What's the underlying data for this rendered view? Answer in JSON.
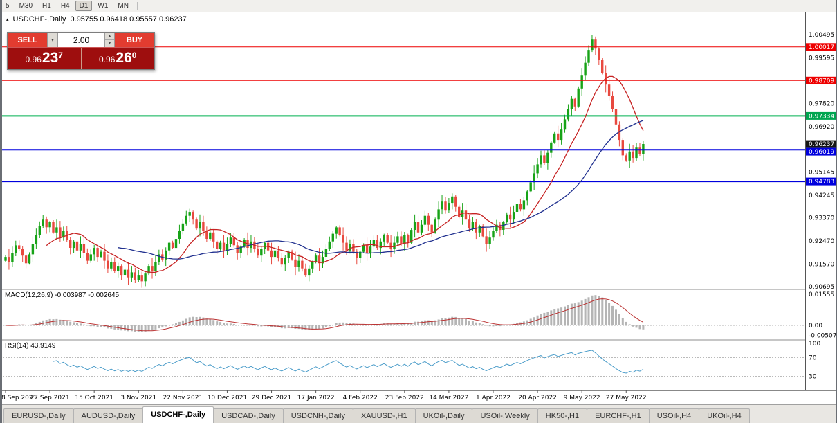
{
  "toolbar": {
    "timeframes": [
      "5",
      "M30",
      "H1",
      "H4",
      "D1",
      "W1",
      "MN"
    ],
    "active_timeframe": "D1"
  },
  "chart": {
    "marker": "▴",
    "title": "USDCHF-,Daily",
    "ohlc": "0.95755 0.96418 0.95557 0.96237"
  },
  "trade_panel": {
    "sell_label": "SELL",
    "buy_label": "BUY",
    "lot_value": "2.00",
    "bid": {
      "prefix": "0.96",
      "big": "23",
      "sup": "7"
    },
    "ask": {
      "prefix": "0.96",
      "big": "26",
      "sup": "0"
    }
  },
  "icons": {
    "dropdown": "▾",
    "spin_up": "▴",
    "spin_down": "▾"
  },
  "indicators": {
    "macd_label": "MACD(12,26,9) -0.003987 -0.002645",
    "rsi_label": "RSI(14) 43.9149"
  },
  "price_axis": {
    "plain": [
      "1.00495",
      "0.99595",
      "0.97820",
      "0.96920",
      "0.95145",
      "0.94245",
      "0.93370",
      "0.92470",
      "0.91570",
      "0.90695"
    ],
    "tagged": [
      {
        "value": "1.00017",
        "color": "#ee0000"
      },
      {
        "value": "0.98709",
        "color": "#ee0000"
      },
      {
        "value": "0.97334",
        "color": "#00a550"
      },
      {
        "value": "0.96237",
        "color": "#151515"
      },
      {
        "value": "0.96019",
        "color": "#0000dd"
      },
      {
        "value": "0.94783",
        "color": "#0000dd"
      }
    ]
  },
  "macd_axis": [
    "0.01555",
    "0.00",
    "-0.005075"
  ],
  "rsi_axis": [
    "100",
    "70",
    "30"
  ],
  "dates": [
    "8 Sep 2021",
    "27 Sep 2021",
    "15 Oct 2021",
    "3 Nov 2021",
    "22 Nov 2021",
    "10 Dec 2021",
    "29 Dec 2021",
    "17 Jan 2022",
    "4 Feb 2022",
    "23 Feb 2022",
    "14 Mar 2022",
    "1 Apr 2022",
    "20 Apr 2022",
    "9 May 2022",
    "27 May 2022"
  ],
  "tabs": [
    "EURUSD-,Daily",
    "AUDUSD-,Daily",
    "USDCHF-,Daily",
    "USDCAD-,Daily",
    "USDCNH-,Daily",
    "XAUUSD-,H1",
    "UKOil-,Daily",
    "USOil-,Weekly",
    "HK50-,H1",
    "EURCHF-,H1",
    "USOil-,H4",
    "UKOil-,H4"
  ],
  "active_tab": "USDCHF-,Daily",
  "colors": {
    "up": "#17a317",
    "down": "#e8493f",
    "ma_fast": "#c62222",
    "ma_slow": "#20308f",
    "macd_hist": "#b5b5b5",
    "macd_signal": "#bb3333",
    "rsi": "#4a9cc9"
  },
  "chart_data": {
    "type": "candlestick",
    "symbol": "USDCHF-",
    "period": "Daily",
    "ohlc_current": {
      "open": "0.95755",
      "high": "0.96418",
      "low": "0.95557",
      "close": "0.96237"
    },
    "bid": "0.96237",
    "ask": "0.96260",
    "bars_per_tick": 13,
    "first_open": 0.917,
    "wick_cycle": [
      0.0008,
      0.0018,
      0.0005,
      0.0025,
      0.0012,
      0.003,
      0.0019
    ],
    "closes": [
      0.9185,
      0.9165,
      0.92,
      0.923,
      0.9215,
      0.919,
      0.916,
      0.9195,
      0.9235,
      0.927,
      0.9305,
      0.933,
      0.93,
      0.932,
      0.928,
      0.93,
      0.926,
      0.9285,
      0.925,
      0.922,
      0.9245,
      0.921,
      0.9235,
      0.92,
      0.917,
      0.9195,
      0.922,
      0.9185,
      0.9205,
      0.917,
      0.914,
      0.9165,
      0.913,
      0.915,
      0.9115,
      0.9135,
      0.9105,
      0.9125,
      0.9095,
      0.9115,
      0.909,
      0.912,
      0.915,
      0.913,
      0.9165,
      0.9195,
      0.9175,
      0.921,
      0.924,
      0.922,
      0.9255,
      0.9285,
      0.9315,
      0.9345,
      0.936,
      0.933,
      0.9295,
      0.932,
      0.9285,
      0.9255,
      0.928,
      0.9245,
      0.9215,
      0.924,
      0.921,
      0.9235,
      0.926,
      0.923,
      0.92,
      0.9225,
      0.925,
      0.922,
      0.9245,
      0.9215,
      0.919,
      0.9215,
      0.924,
      0.921,
      0.9185,
      0.921,
      0.918,
      0.9155,
      0.918,
      0.9205,
      0.9175,
      0.9145,
      0.917,
      0.914,
      0.9115,
      0.914,
      0.9165,
      0.919,
      0.916,
      0.9185,
      0.9215,
      0.9245,
      0.9275,
      0.93,
      0.927,
      0.924,
      0.921,
      0.9235,
      0.9205,
      0.918,
      0.9205,
      0.923,
      0.92,
      0.9225,
      0.925,
      0.922,
      0.9245,
      0.927,
      0.924,
      0.9215,
      0.924,
      0.9265,
      0.9235,
      0.927,
      0.924,
      0.929,
      0.932,
      0.928,
      0.931,
      0.9345,
      0.931,
      0.928,
      0.933,
      0.937,
      0.94,
      0.9365,
      0.9395,
      0.942,
      0.938,
      0.934,
      0.9365,
      0.933,
      0.9295,
      0.932,
      0.928,
      0.9305,
      0.9265,
      0.9235,
      0.926,
      0.9285,
      0.931,
      0.929,
      0.932,
      0.935,
      0.933,
      0.936,
      0.939,
      0.937,
      0.9405,
      0.944,
      0.9475,
      0.951,
      0.9545,
      0.958,
      0.955,
      0.959,
      0.963,
      0.9665,
      0.964,
      0.968,
      0.972,
      0.976,
      0.98,
      0.977,
      0.984,
      0.989,
      0.994,
      0.999,
      1.003,
      0.9995,
      0.995,
      0.99,
      0.9855,
      0.981,
      0.976,
      0.97,
      0.964,
      0.958,
      0.956,
      0.9595,
      0.957,
      0.961,
      0.9585,
      0.9624
    ],
    "levels": [
      {
        "price": 1.00017,
        "color": "#ee0000",
        "width": 1
      },
      {
        "price": 0.98709,
        "color": "#ee0000",
        "width": 1
      },
      {
        "price": 0.97334,
        "color": "#00b050",
        "width": 2
      },
      {
        "price": 0.96019,
        "color": "#0000dd",
        "width": 2
      },
      {
        "price": 0.94783,
        "color": "#0000dd",
        "width": 2
      }
    ],
    "current_price": 0.96237,
    "ma": [
      {
        "period": 13,
        "color": "#c62222"
      },
      {
        "period": 34,
        "color": "#20308f"
      }
    ],
    "macd": {
      "fast": 12,
      "slow": 26,
      "signal": 9,
      "current": "-0.003987",
      "current_signal": "-0.002645"
    },
    "rsi": {
      "period": 14,
      "current": "43.9149",
      "levels": [
        70,
        30
      ]
    },
    "y_axis_range": {
      "top": 1.01357,
      "bottom": 0.9064
    }
  }
}
